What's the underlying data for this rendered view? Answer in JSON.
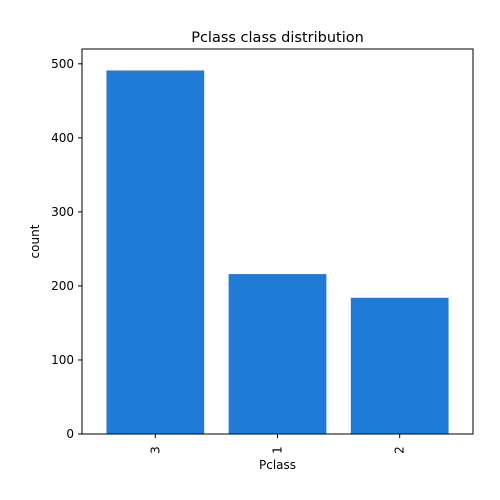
{
  "chart_data": {
    "type": "bar",
    "title": "Pclass class distribution",
    "xlabel": "Pclass",
    "ylabel": "count",
    "categories": [
      "3",
      "1",
      "2"
    ],
    "values": [
      491,
      216,
      184
    ],
    "ylim": [
      0,
      520
    ],
    "yticks": [
      "0",
      "100",
      "200",
      "300",
      "400",
      "500"
    ],
    "bar_color": "#1f7bd6",
    "grid": false,
    "legend": "none"
  }
}
